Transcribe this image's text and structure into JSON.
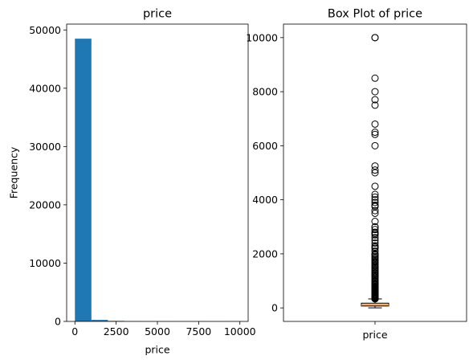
{
  "chart_data": [
    {
      "type": "bar",
      "title": "price",
      "xlabel": "price",
      "ylabel": "Frequency",
      "xlim": [
        -500,
        10500
      ],
      "ylim": [
        0,
        51000
      ],
      "xticks": [
        0,
        2500,
        5000,
        7500,
        10000
      ],
      "xtick_labels": [
        "0",
        "2500",
        "5000",
        "7500",
        "10000"
      ],
      "yticks": [
        0,
        10000,
        20000,
        30000,
        40000,
        50000
      ],
      "ytick_labels": [
        "0",
        "10000",
        "20000",
        "30000",
        "40000",
        "50000"
      ],
      "bar_color": "#1f77b4",
      "bins": [
        {
          "x0": 0,
          "x1": 1000,
          "count": 48500
        },
        {
          "x0": 1000,
          "x1": 2000,
          "count": 260
        },
        {
          "x0": 2000,
          "x1": 3000,
          "count": 90
        },
        {
          "x0": 3000,
          "x1": 4000,
          "count": 30
        },
        {
          "x0": 4000,
          "x1": 5000,
          "count": 15
        },
        {
          "x0": 5000,
          "x1": 6000,
          "count": 10
        },
        {
          "x0": 6000,
          "x1": 7000,
          "count": 6
        },
        {
          "x0": 7000,
          "x1": 8000,
          "count": 3
        },
        {
          "x0": 8000,
          "x1": 9000,
          "count": 2
        },
        {
          "x0": 9000,
          "x1": 10000,
          "count": 5
        }
      ]
    },
    {
      "type": "box",
      "title": "Box Plot of price",
      "category": "price",
      "ylim": [
        -500,
        10500
      ],
      "yticks": [
        0,
        2000,
        4000,
        6000,
        8000,
        10000
      ],
      "ytick_labels": [
        "0",
        "2000",
        "4000",
        "6000",
        "8000",
        "10000"
      ],
      "box_fill": "#ffd3a6",
      "median_color": "#f28e2b",
      "stats": {
        "whisker_low": 0,
        "q1": 69,
        "median": 106,
        "q3": 175,
        "whisker_high": 334
      },
      "outliers": [
        335,
        340,
        345,
        350,
        355,
        360,
        365,
        370,
        375,
        380,
        390,
        399,
        400,
        410,
        420,
        425,
        430,
        440,
        450,
        460,
        475,
        480,
        490,
        495,
        499,
        500,
        520,
        550,
        575,
        595,
        600,
        625,
        650,
        675,
        695,
        700,
        725,
        750,
        775,
        795,
        800,
        850,
        875,
        899,
        900,
        950,
        975,
        995,
        1000,
        1050,
        1100,
        1150,
        1195,
        1200,
        1250,
        1299,
        1300,
        1350,
        1400,
        1450,
        1495,
        1500,
        1550,
        1600,
        1650,
        1700,
        1750,
        1800,
        1850,
        1900,
        1950,
        1999,
        2000,
        2100,
        2200,
        2250,
        2300,
        2400,
        2500,
        2600,
        2700,
        2750,
        2800,
        2900,
        2995,
        3000,
        3200,
        3500,
        3600,
        3750,
        3800,
        3900,
        4000,
        4100,
        4200,
        4500,
        5000,
        5100,
        5250,
        6000,
        6419,
        6500,
        6800,
        7500,
        7703,
        8000,
        8500,
        9999,
        10000
      ]
    }
  ]
}
